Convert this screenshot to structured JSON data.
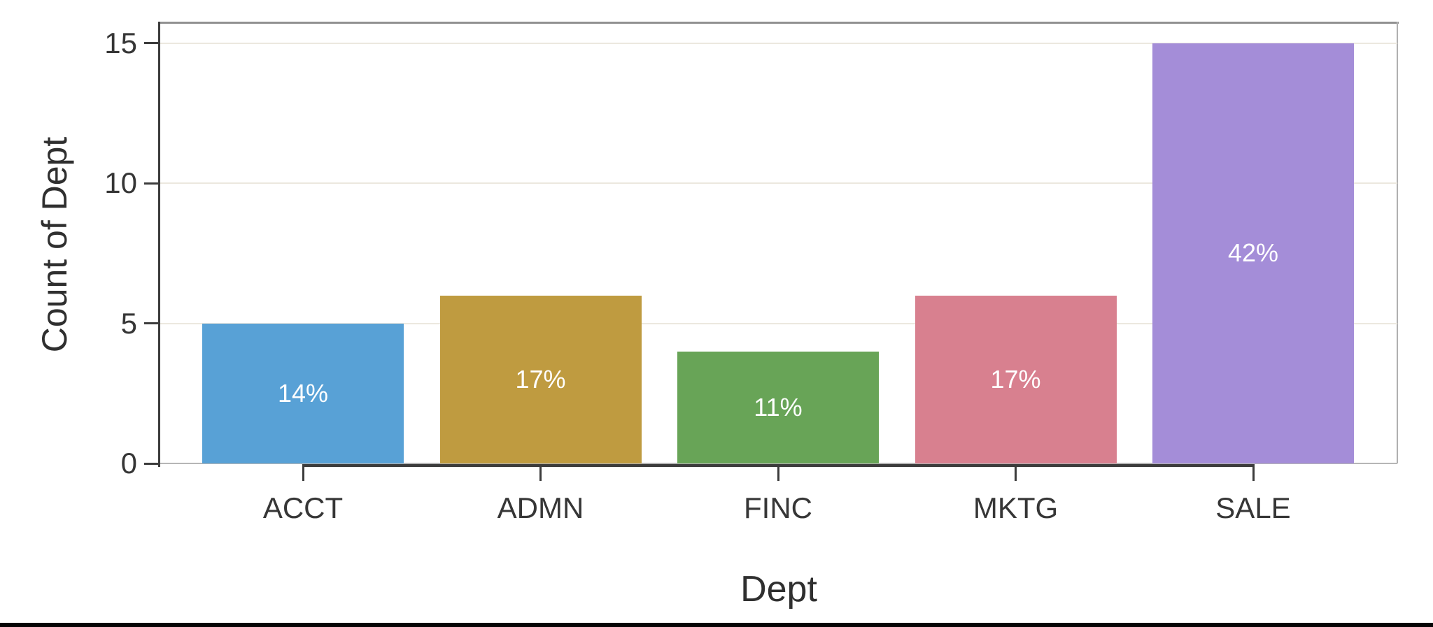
{
  "chart_data": {
    "type": "bar",
    "title": "",
    "xlabel": "Dept",
    "ylabel": "Count of Dept",
    "categories": [
      "ACCT",
      "ADMN",
      "FINC",
      "MKTG",
      "SALE"
    ],
    "values": [
      5,
      6,
      4,
      6,
      15
    ],
    "bar_labels": [
      "14%",
      "17%",
      "11%",
      "17%",
      "42%"
    ],
    "bar_colors": [
      "#58a1d6",
      "#bf9b40",
      "#68a457",
      "#d8808f",
      "#a48dd8"
    ],
    "yticks": [
      0,
      5,
      10,
      15
    ],
    "ylim": [
      0,
      15.75
    ],
    "grid": "horizontal",
    "legend_position": "none",
    "bar_label_color": "#ffffff"
  },
  "theme": {
    "text_color": "#363636",
    "axis_color": "#3c3c3c",
    "grid_color": "#ece8df",
    "border_color": "#a6a6a6",
    "background": "#ffffff"
  }
}
